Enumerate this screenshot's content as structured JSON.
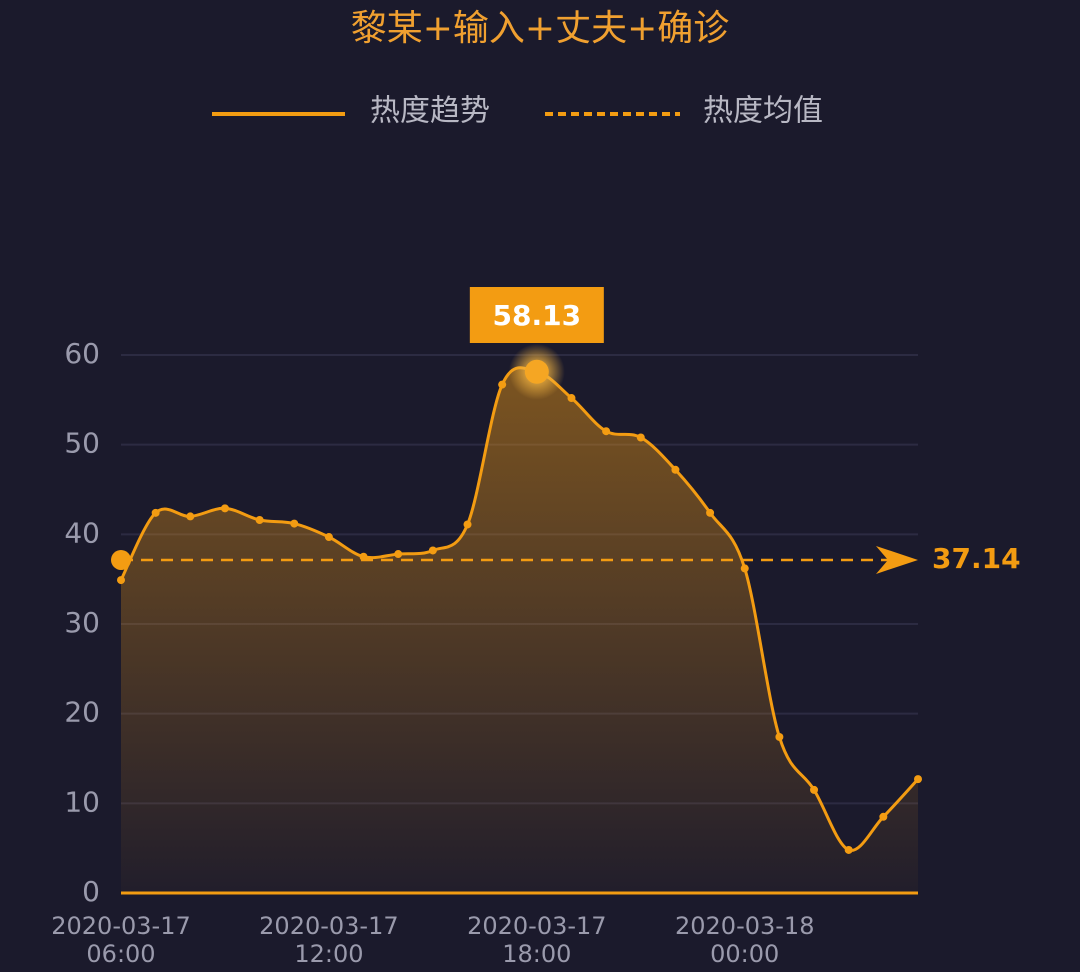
{
  "chart_data": {
    "type": "line",
    "title": "黎某+输入+丈夫+确诊",
    "categories": [
      "2020-03-17 06:00",
      null,
      null,
      null,
      null,
      null,
      "2020-03-17 12:00",
      null,
      null,
      null,
      null,
      null,
      "2020-03-17 18:00",
      null,
      null,
      null,
      null,
      null,
      "2020-03-18 00:00",
      null,
      null,
      null,
      null,
      null
    ],
    "series": [
      {
        "name": "热度趋势",
        "color": "#f39c12",
        "values": [
          34.9,
          42.4,
          42.0,
          42.9,
          41.6,
          41.2,
          39.7,
          37.5,
          37.8,
          38.2,
          41.1,
          56.7,
          58.13,
          55.2,
          51.5,
          50.8,
          47.2,
          42.4,
          36.2,
          17.4,
          11.5,
          4.8,
          8.5,
          12.7
        ]
      }
    ],
    "average": {
      "name": "热度均值",
      "value": 37.14
    },
    "max_index": 12,
    "ylim": [
      0,
      60
    ],
    "yticks": [
      0,
      10,
      20,
      30,
      40,
      50,
      60
    ],
    "grid": true
  }
}
